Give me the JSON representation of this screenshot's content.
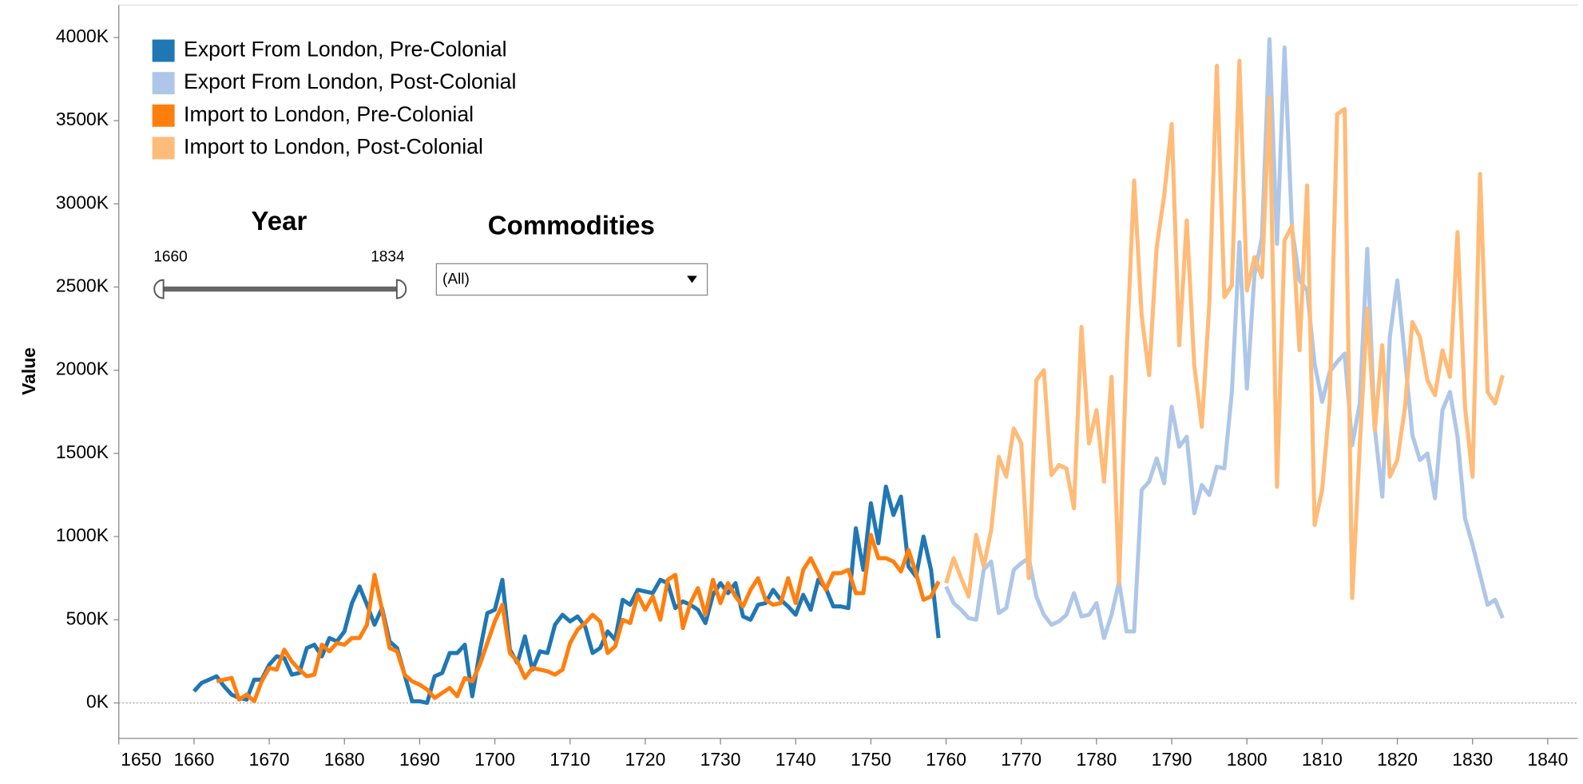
{
  "chart_data": {
    "type": "line",
    "y_axis_label": "Value",
    "x": [
      1660,
      1661,
      1662,
      1663,
      1664,
      1665,
      1666,
      1667,
      1668,
      1669,
      1670,
      1671,
      1672,
      1673,
      1674,
      1675,
      1676,
      1677,
      1678,
      1679,
      1680,
      1681,
      1682,
      1683,
      1684,
      1685,
      1686,
      1687,
      1688,
      1689,
      1690,
      1691,
      1692,
      1693,
      1694,
      1695,
      1696,
      1697,
      1698,
      1699,
      1700,
      1701,
      1702,
      1703,
      1704,
      1705,
      1706,
      1707,
      1708,
      1709,
      1710,
      1711,
      1712,
      1713,
      1714,
      1715,
      1716,
      1717,
      1718,
      1719,
      1720,
      1721,
      1722,
      1723,
      1724,
      1725,
      1726,
      1727,
      1728,
      1729,
      1730,
      1731,
      1732,
      1733,
      1734,
      1735,
      1736,
      1737,
      1738,
      1739,
      1740,
      1741,
      1742,
      1743,
      1744,
      1745,
      1746,
      1747,
      1748,
      1749,
      1750,
      1751,
      1752,
      1753,
      1754,
      1755,
      1756,
      1757,
      1758,
      1759,
      1760,
      1761,
      1762,
      1763,
      1764,
      1765,
      1766,
      1767,
      1768,
      1769,
      1770,
      1771,
      1772,
      1773,
      1774,
      1775,
      1776,
      1777,
      1778,
      1779,
      1780,
      1781,
      1782,
      1783,
      1784,
      1785,
      1786,
      1787,
      1788,
      1789,
      1790,
      1791,
      1792,
      1793,
      1794,
      1795,
      1796,
      1797,
      1798,
      1799,
      1800,
      1801,
      1802,
      1803,
      1804,
      1805,
      1806,
      1807,
      1808,
      1809,
      1810,
      1811,
      1812,
      1813,
      1814,
      1815,
      1816,
      1817,
      1818,
      1819,
      1820,
      1821,
      1822,
      1823,
      1824,
      1825,
      1826,
      1827,
      1828,
      1829,
      1830,
      1831,
      1832,
      1833,
      1834
    ],
    "series": [
      {
        "name": "Export From London, Pre-Colonial",
        "color": "#1f77b4",
        "values": [
          70,
          120,
          140,
          160,
          100,
          50,
          30,
          20,
          140,
          140,
          230,
          280,
          270,
          170,
          180,
          330,
          350,
          280,
          390,
          370,
          430,
          600,
          700,
          590,
          470,
          570,
          370,
          330,
          170,
          10,
          10,
          0,
          160,
          180,
          300,
          300,
          350,
          40,
          310,
          540,
          560,
          740,
          320,
          240,
          400,
          200,
          310,
          300,
          470,
          530,
          490,
          520,
          460,
          300,
          330,
          430,
          380,
          620,
          590,
          680,
          670,
          660,
          740,
          720,
          570,
          610,
          590,
          560,
          480,
          650,
          720,
          660,
          720,
          520,
          500,
          590,
          600,
          680,
          620,
          580,
          530,
          650,
          560,
          740,
          690,
          580,
          580,
          570,
          1050,
          800,
          1200,
          960,
          1300,
          1130,
          1240,
          820,
          760,
          1000,
          800,
          390,
          null,
          null,
          null,
          null,
          null,
          null,
          null,
          null,
          null,
          null,
          null,
          null,
          null,
          null,
          null,
          null,
          null,
          null,
          null,
          null,
          null,
          null,
          null,
          null,
          null,
          null,
          null,
          null,
          null,
          null,
          null,
          null,
          null,
          null,
          null,
          null,
          null,
          null,
          null,
          null,
          null,
          null,
          null,
          null,
          null,
          null,
          null,
          null,
          null,
          null,
          null,
          null,
          null,
          null,
          null,
          null,
          null,
          null,
          null,
          null,
          null,
          null,
          null,
          null,
          null,
          null,
          null,
          null,
          null,
          null,
          null,
          null,
          null,
          null,
          null
        ]
      },
      {
        "name": "Export From London, Post-Colonial",
        "color": "#aec7e8",
        "values": [
          null,
          null,
          null,
          null,
          null,
          null,
          null,
          null,
          null,
          null,
          null,
          null,
          null,
          null,
          null,
          null,
          null,
          null,
          null,
          null,
          null,
          null,
          null,
          null,
          null,
          null,
          null,
          null,
          null,
          null,
          null,
          null,
          null,
          null,
          null,
          null,
          null,
          null,
          null,
          null,
          null,
          null,
          null,
          null,
          null,
          null,
          null,
          null,
          null,
          null,
          null,
          null,
          null,
          null,
          null,
          null,
          null,
          null,
          null,
          null,
          null,
          null,
          null,
          null,
          null,
          null,
          null,
          null,
          null,
          null,
          null,
          null,
          null,
          null,
          null,
          null,
          null,
          null,
          null,
          null,
          null,
          null,
          null,
          null,
          null,
          null,
          null,
          null,
          null,
          null,
          null,
          null,
          null,
          null,
          null,
          null,
          null,
          null,
          null,
          null,
          700,
          600,
          560,
          510,
          500,
          800,
          850,
          540,
          570,
          800,
          840,
          870,
          640,
          530,
          470,
          490,
          530,
          660,
          520,
          530,
          600,
          390,
          530,
          730,
          430,
          430,
          1280,
          1330,
          1470,
          1320,
          1780,
          1540,
          1600,
          1140,
          1310,
          1250,
          1420,
          1410,
          1870,
          2770,
          1890,
          2570,
          2800,
          3990,
          2760,
          3940,
          2850,
          2540,
          2480,
          2040,
          1810,
          1990,
          2050,
          2100,
          1550,
          1800,
          2730,
          1650,
          1240,
          2200,
          2540,
          2080,
          1610,
          1460,
          1500,
          1230,
          1760,
          1870,
          1600,
          1110,
          950,
          770,
          590,
          620,
          510
        ]
      },
      {
        "name": "Import to London, Pre-Colonial",
        "color": "#ff7f0e",
        "values": [
          null,
          null,
          null,
          130,
          140,
          150,
          20,
          50,
          10,
          130,
          210,
          200,
          320,
          250,
          200,
          160,
          170,
          350,
          310,
          360,
          350,
          390,
          390,
          470,
          770,
          560,
          330,
          310,
          170,
          130,
          110,
          80,
          30,
          60,
          90,
          40,
          150,
          130,
          230,
          360,
          490,
          590,
          300,
          250,
          150,
          210,
          200,
          190,
          170,
          200,
          360,
          440,
          480,
          530,
          490,
          300,
          340,
          500,
          480,
          650,
          560,
          640,
          500,
          740,
          770,
          450,
          600,
          690,
          530,
          740,
          600,
          720,
          640,
          580,
          680,
          750,
          620,
          590,
          600,
          750,
          600,
          800,
          870,
          780,
          680,
          780,
          780,
          800,
          660,
          660,
          1010,
          870,
          870,
          850,
          790,
          920,
          780,
          620,
          640,
          730,
          null,
          null,
          null,
          null,
          null,
          null,
          null,
          null,
          null,
          null,
          null,
          null,
          null,
          null,
          null,
          null,
          null,
          null,
          null,
          null,
          null,
          null,
          null,
          null,
          null,
          null,
          null,
          null,
          null,
          null,
          null,
          null,
          null,
          null,
          null,
          null,
          null,
          null,
          null,
          null,
          null,
          null,
          null,
          null,
          null,
          null,
          null,
          null,
          null,
          null,
          null,
          null,
          null,
          null,
          null,
          null,
          null,
          null,
          null,
          null,
          null,
          null,
          null,
          null,
          null,
          null,
          null,
          null,
          null,
          null,
          null,
          null,
          null,
          null,
          null
        ]
      },
      {
        "name": "Import to London, Post-Colonial",
        "color": "#ffbb78",
        "values": [
          null,
          null,
          null,
          null,
          null,
          null,
          null,
          null,
          null,
          null,
          null,
          null,
          null,
          null,
          null,
          null,
          null,
          null,
          null,
          null,
          null,
          null,
          null,
          null,
          null,
          null,
          null,
          null,
          null,
          null,
          null,
          null,
          null,
          null,
          null,
          null,
          null,
          null,
          null,
          null,
          null,
          null,
          null,
          null,
          null,
          null,
          null,
          null,
          null,
          null,
          null,
          null,
          null,
          null,
          null,
          null,
          null,
          null,
          null,
          null,
          null,
          null,
          null,
          null,
          null,
          null,
          null,
          null,
          null,
          null,
          null,
          null,
          null,
          null,
          null,
          null,
          null,
          null,
          null,
          null,
          null,
          null,
          null,
          null,
          null,
          null,
          null,
          null,
          null,
          null,
          null,
          null,
          null,
          null,
          null,
          null,
          null,
          null,
          null,
          null,
          720,
          870,
          750,
          640,
          1010,
          820,
          1040,
          1480,
          1360,
          1650,
          1560,
          750,
          1940,
          2000,
          1370,
          1430,
          1410,
          1170,
          2260,
          1560,
          1760,
          1330,
          1960,
          720,
          2100,
          3140,
          2330,
          1970,
          2740,
          3050,
          3480,
          2150,
          2900,
          2030,
          1660,
          2400,
          3830,
          2440,
          2510,
          3860,
          2480,
          2680,
          2560,
          3640,
          1300,
          2780,
          2870,
          2120,
          3110,
          1070,
          1280,
          1800,
          3540,
          3570,
          630,
          1540,
          2370,
          1640,
          2150,
          1360,
          1460,
          1770,
          2290,
          2200,
          1940,
          1850,
          2120,
          1960,
          2830,
          1780,
          1360,
          3180,
          1870,
          1800,
          1970
        ]
      }
    ],
    "xlim": [
      1650,
      1844
    ],
    "xticks": [
      1650,
      1660,
      1670,
      1680,
      1690,
      1700,
      1710,
      1720,
      1730,
      1740,
      1750,
      1760,
      1770,
      1780,
      1790,
      1800,
      1810,
      1820,
      1830,
      1840
    ],
    "ylim": [
      -213,
      4195
    ],
    "yticks": [
      {
        "value": 0,
        "label": "0K"
      },
      {
        "value": 500,
        "label": "500K"
      },
      {
        "value": 1000,
        "label": "1000K"
      },
      {
        "value": 1500,
        "label": "1500K"
      },
      {
        "value": 2000,
        "label": "2000K"
      },
      {
        "value": 2500,
        "label": "2500K"
      },
      {
        "value": 3000,
        "label": "3000K"
      },
      {
        "value": 3500,
        "label": "3500K"
      },
      {
        "value": 4000,
        "label": "4000K"
      }
    ],
    "grid": false
  },
  "filters": {
    "year": {
      "title": "Year",
      "min": 1660,
      "max": 1834
    },
    "commodities": {
      "title": "Commodities",
      "selected": "(All)"
    }
  }
}
